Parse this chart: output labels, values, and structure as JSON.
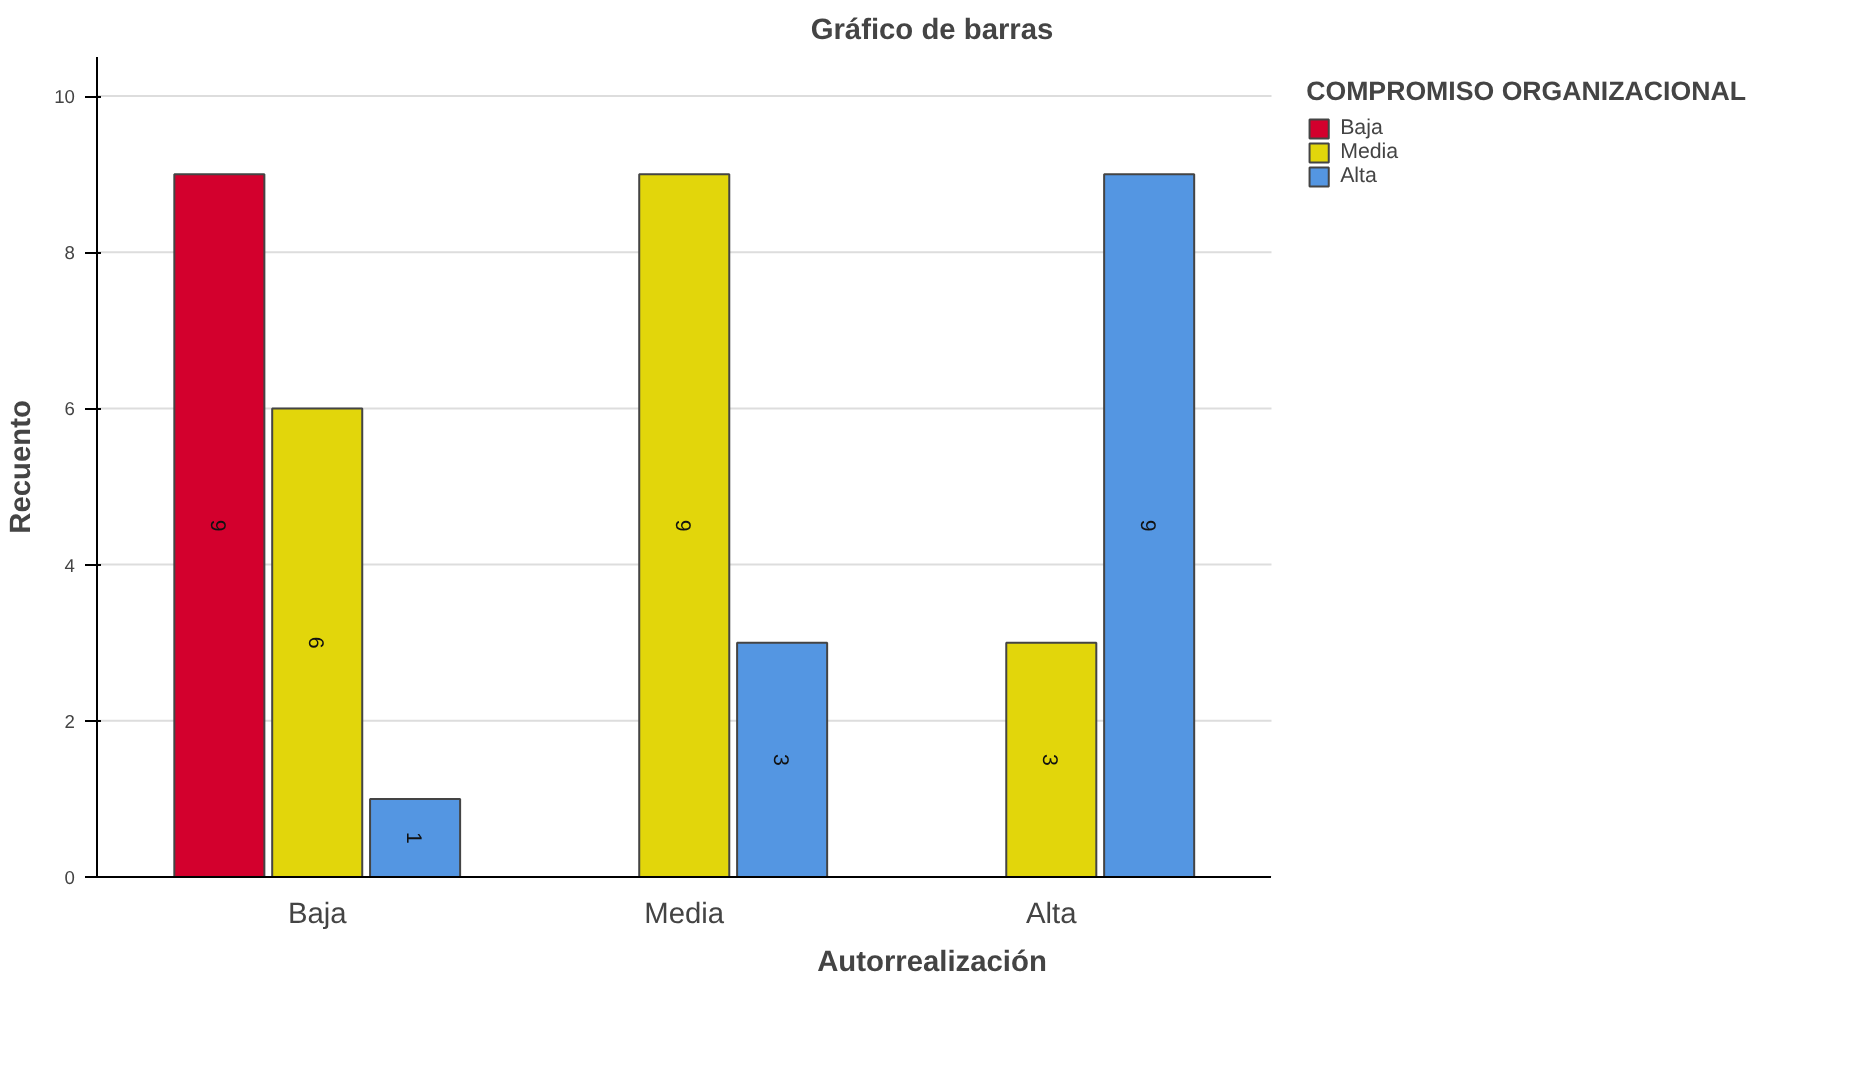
{
  "chart_data": {
    "type": "bar",
    "title": "Gráfico de barras",
    "xlabel": "Autorrealización",
    "ylabel": "Recuento",
    "legend_title": "COMPROMISO ORGANIZACIONAL",
    "categories": [
      "Baja",
      "Media",
      "Alta"
    ],
    "series": [
      {
        "name": "Baja",
        "color": "#d3002d",
        "values": [
          9,
          null,
          null
        ]
      },
      {
        "name": "Media",
        "color": "#e2d60b",
        "values": [
          6,
          9,
          3
        ]
      },
      {
        "name": "Alta",
        "color": "#5496e2",
        "values": [
          1,
          3,
          9
        ]
      }
    ],
    "ylim": [
      0,
      10.5
    ],
    "yticks": [
      0,
      2,
      4,
      6,
      8,
      10
    ],
    "grid": "y",
    "legend": "top right",
    "data_labels": true
  }
}
